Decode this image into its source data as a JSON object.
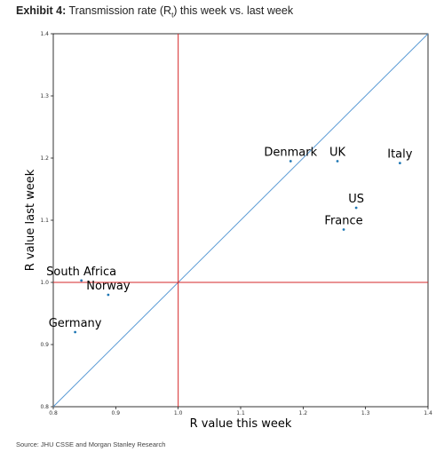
{
  "header": {
    "exhibit": "Exhibit 4:",
    "title_pre": "Transmission rate (R",
    "title_sub": "t",
    "title_post": ") this week vs. last week"
  },
  "source": "Source: JHU CSSE and Morgan Stanley Research",
  "chart_data": {
    "type": "scatter",
    "title": "Transmission rate (Rt) this week vs. last week",
    "xlabel": "R value this week",
    "ylabel": "R value last week",
    "xlim": [
      0.8,
      1.4
    ],
    "ylim": [
      0.8,
      1.4
    ],
    "xticks": [
      "0.8",
      "0.9",
      "1.0",
      "1.1",
      "1.2",
      "1.3",
      "1.4"
    ],
    "yticks": [
      "0.8",
      "0.9",
      "1.0",
      "1.1",
      "1.2",
      "1.3",
      "1.4"
    ],
    "reference_lines": {
      "diagonal": "y = x",
      "vertical_x": 1.0,
      "horizontal_y": 1.0
    },
    "points": [
      {
        "label": "Denmark",
        "x": 1.18,
        "y": 1.195
      },
      {
        "label": "UK",
        "x": 1.255,
        "y": 1.195
      },
      {
        "label": "Italy",
        "x": 1.355,
        "y": 1.192
      },
      {
        "label": "US",
        "x": 1.285,
        "y": 1.12
      },
      {
        "label": "France",
        "x": 1.265,
        "y": 1.085
      },
      {
        "label": "South Africa",
        "x": 0.845,
        "y": 1.003
      },
      {
        "label": "Norway",
        "x": 0.888,
        "y": 0.98
      },
      {
        "label": "Germany",
        "x": 0.835,
        "y": 0.92
      }
    ],
    "grid": false,
    "colors": {
      "points": "#1f77b4",
      "diagonal": "#5b9bd5",
      "reflines": "#d62728"
    }
  }
}
